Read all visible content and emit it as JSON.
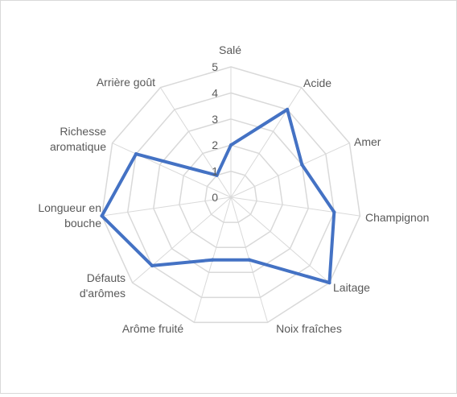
{
  "chart_data": {
    "type": "radar",
    "title": "",
    "categories": [
      "Salé",
      "Acide",
      "Amer",
      "Champignon",
      "Laitage",
      "Noix fraîches",
      "Arôme fruité",
      "Défauts d'arômes",
      "Longueur en bouche",
      "Richesse aromatique",
      "Arrière goût"
    ],
    "axis_ticks": [
      "0",
      "1",
      "2",
      "3",
      "4",
      "5"
    ],
    "rlim": [
      0,
      5
    ],
    "grid": true,
    "legend": "none",
    "series": [
      {
        "values": [
          2,
          4,
          3,
          4,
          5,
          2.5,
          2.5,
          4,
          5,
          4,
          1
        ],
        "color": "#4472C4"
      }
    ],
    "grid_color": "#d9d9d9"
  }
}
